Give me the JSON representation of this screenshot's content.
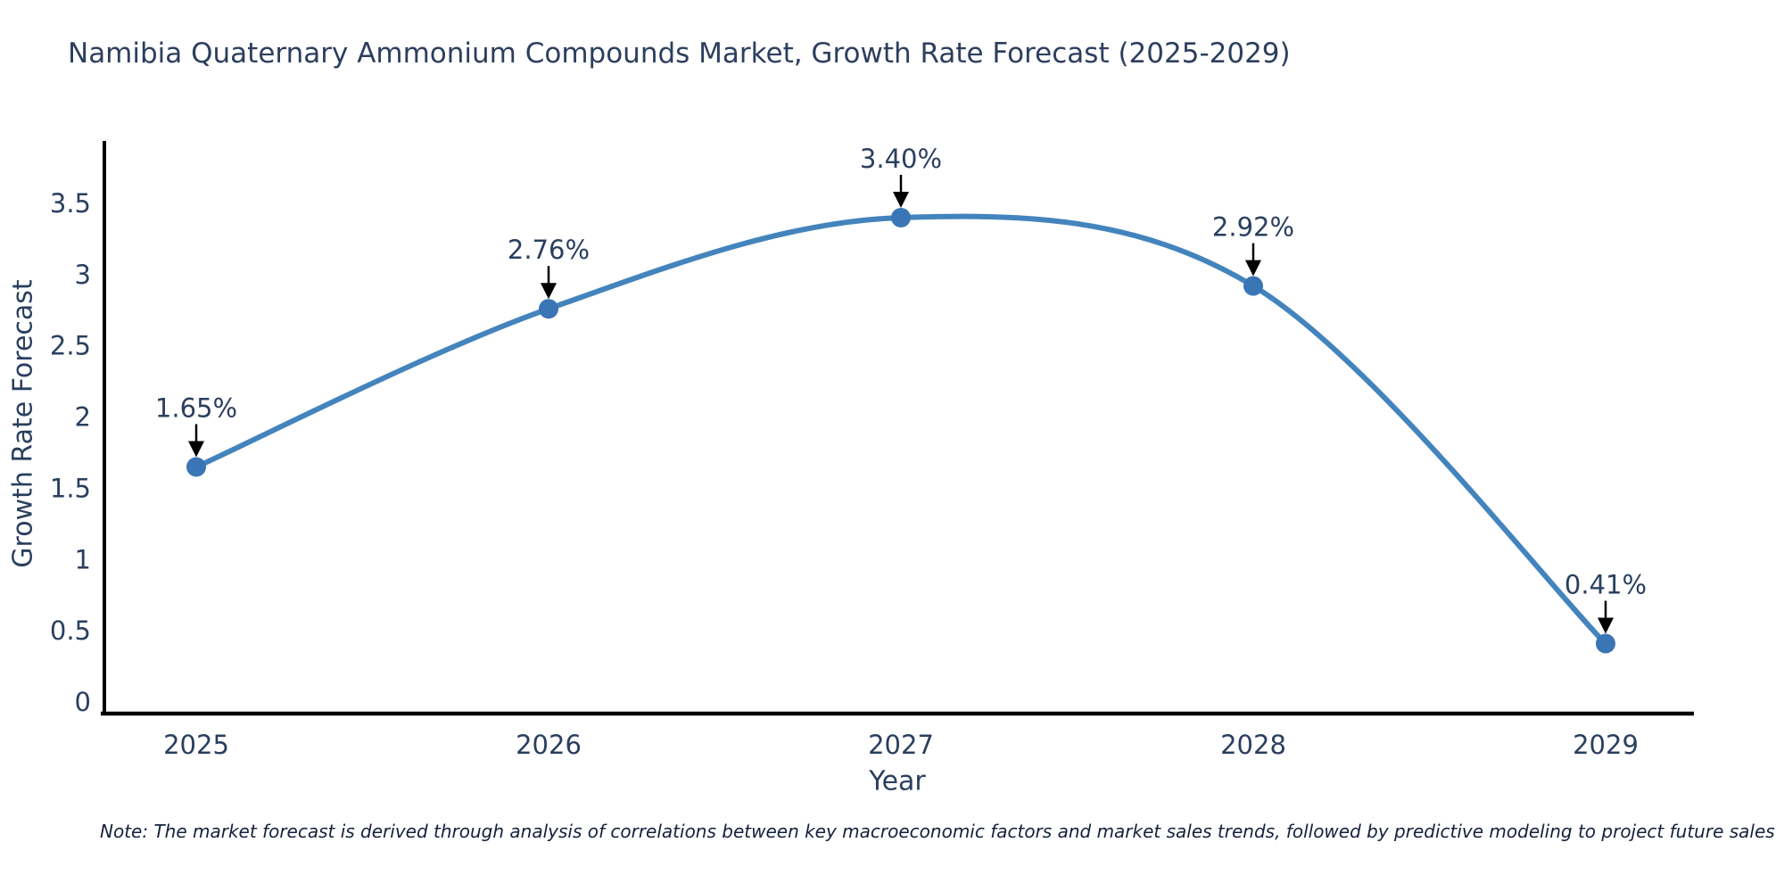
{
  "chart_data": {
    "type": "line",
    "title": "Namibia Quaternary Ammonium Compounds Market, Growth Rate Forecast (2025-2029)",
    "xlabel": "Year",
    "ylabel": "Growth Rate Forecast",
    "categories": [
      "2025",
      "2026",
      "2027",
      "2028",
      "2029"
    ],
    "values": [
      1.65,
      2.76,
      3.4,
      2.92,
      0.41
    ],
    "annotations": [
      "1.65%",
      "2.76%",
      "3.40%",
      "2.92%",
      "0.41%"
    ],
    "yticks": [
      "0",
      "0.5",
      "1",
      "1.5",
      "2",
      "2.5",
      "3",
      "3.5"
    ],
    "ylim": [
      -0.08,
      3.93
    ],
    "grid": false,
    "legend": "none",
    "line_shape": "spline",
    "line_color": "#4484bd",
    "marker_color": "#3a76b5",
    "axis_color": "#000000",
    "tick_color": "#2a3f5f",
    "annotation_color": "#2a3f5f",
    "arrow_color": "#000000",
    "title_color": "#2d3f5e"
  },
  "note": "Note: The market forecast is derived through analysis of correlations between key macroeconomic factors and market sales trends, followed by predictive modeling to project future sales"
}
